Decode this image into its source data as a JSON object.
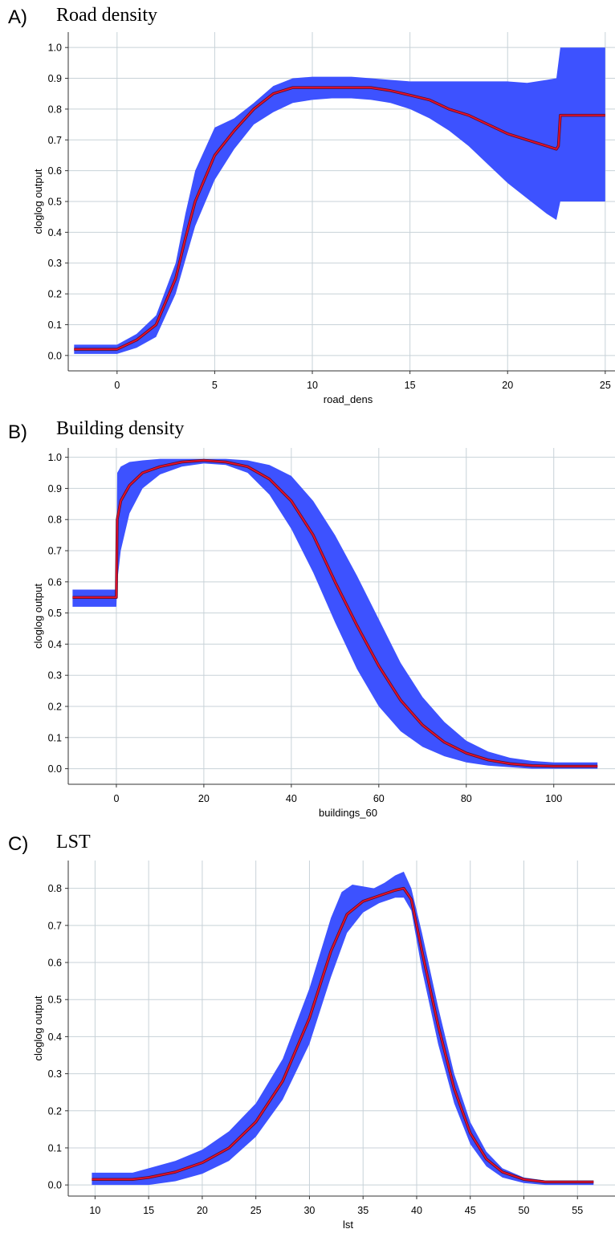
{
  "panels": [
    {
      "letter": "A)",
      "title": "Road density",
      "chart_data": {
        "type": "area",
        "xlabel": "road_dens",
        "ylabel": "cloglog output",
        "xlim": [
          -2.5,
          25.5
        ],
        "ylim": [
          -0.05,
          1.05
        ],
        "xticks": [
          0,
          5,
          10,
          15,
          20,
          25
        ],
        "yticks": [
          0.0,
          0.1,
          0.2,
          0.3,
          0.4,
          0.5,
          0.6,
          0.7,
          0.8,
          0.9,
          1.0
        ],
        "grid": true,
        "series": [
          {
            "role": "mean",
            "color": "#e8102a",
            "x": [
              -2.2,
              0,
              1,
              2,
              3,
              3.5,
              4,
              5,
              6,
              7,
              8,
              9,
              10,
              11,
              12,
              13,
              14,
              15,
              16,
              17,
              18,
              19,
              20,
              21,
              22,
              22.5,
              22.6,
              22.7,
              23,
              24,
              25
            ],
            "y": [
              0.02,
              0.02,
              0.05,
              0.1,
              0.25,
              0.38,
              0.5,
              0.65,
              0.73,
              0.8,
              0.85,
              0.87,
              0.87,
              0.87,
              0.87,
              0.87,
              0.86,
              0.845,
              0.83,
              0.8,
              0.78,
              0.75,
              0.72,
              0.7,
              0.68,
              0.67,
              0.68,
              0.78,
              0.78,
              0.78,
              0.78
            ]
          },
          {
            "role": "upper",
            "color": "#3d52ff",
            "x": [
              -2.2,
              0,
              1,
              2,
              3,
              3.5,
              4,
              5,
              6,
              7,
              8,
              9,
              10,
              11,
              12,
              13,
              14,
              15,
              16,
              17,
              18,
              19,
              20,
              21,
              22,
              22.5,
              22.7,
              25
            ],
            "y": [
              0.035,
              0.035,
              0.07,
              0.13,
              0.3,
              0.46,
              0.6,
              0.74,
              0.77,
              0.82,
              0.875,
              0.9,
              0.905,
              0.905,
              0.905,
              0.9,
              0.895,
              0.89,
              0.89,
              0.89,
              0.89,
              0.89,
              0.89,
              0.885,
              0.895,
              0.9,
              1.0,
              1.0
            ]
          },
          {
            "role": "lower",
            "color": "#3d52ff",
            "x": [
              -2.2,
              0,
              1,
              2,
              3,
              3.5,
              4,
              5,
              6,
              7,
              8,
              9,
              10,
              11,
              12,
              13,
              14,
              15,
              16,
              17,
              18,
              19,
              20,
              21,
              22,
              22.5,
              22.7,
              25
            ],
            "y": [
              0.005,
              0.005,
              0.025,
              0.06,
              0.2,
              0.31,
              0.42,
              0.57,
              0.67,
              0.75,
              0.79,
              0.82,
              0.83,
              0.835,
              0.835,
              0.83,
              0.82,
              0.8,
              0.77,
              0.73,
              0.68,
              0.62,
              0.56,
              0.51,
              0.46,
              0.44,
              0.5,
              0.5
            ]
          }
        ]
      }
    },
    {
      "letter": "B)",
      "title": "Building density",
      "chart_data": {
        "type": "area",
        "xlabel": "buildings_60",
        "ylabel": "cloglog output",
        "xlim": [
          -11,
          114
        ],
        "ylim": [
          -0.05,
          1.03
        ],
        "xticks": [
          0,
          20,
          40,
          60,
          80,
          100
        ],
        "yticks": [
          0.0,
          0.1,
          0.2,
          0.3,
          0.4,
          0.5,
          0.6,
          0.7,
          0.8,
          0.9,
          1.0
        ],
        "grid": true,
        "series": [
          {
            "role": "mean",
            "color": "#e8102a",
            "x": [
              -10,
              0,
              0.2,
              1,
              3,
              6,
              10,
              15,
              20,
              25,
              30,
              35,
              40,
              45,
              50,
              55,
              60,
              65,
              70,
              75,
              80,
              85,
              90,
              95,
              100,
              105,
              110
            ],
            "y": [
              0.55,
              0.55,
              0.8,
              0.86,
              0.91,
              0.95,
              0.97,
              0.985,
              0.99,
              0.985,
              0.97,
              0.93,
              0.86,
              0.75,
              0.6,
              0.46,
              0.33,
              0.22,
              0.14,
              0.085,
              0.05,
              0.028,
              0.016,
              0.01,
              0.008,
              0.008,
              0.008
            ]
          },
          {
            "role": "upper",
            "color": "#3d52ff",
            "x": [
              -10,
              0,
              0.2,
              1,
              3,
              6,
              10,
              15,
              20,
              25,
              30,
              35,
              40,
              45,
              50,
              55,
              60,
              65,
              70,
              75,
              80,
              85,
              90,
              95,
              100,
              105,
              110
            ],
            "y": [
              0.575,
              0.575,
              0.95,
              0.97,
              0.985,
              0.99,
              0.995,
              0.995,
              0.995,
              0.995,
              0.99,
              0.975,
              0.94,
              0.86,
              0.75,
              0.62,
              0.48,
              0.34,
              0.23,
              0.15,
              0.09,
              0.055,
              0.035,
              0.025,
              0.02,
              0.02,
              0.02
            ]
          },
          {
            "role": "lower",
            "color": "#3d52ff",
            "x": [
              -10,
              0,
              0.2,
              1,
              3,
              6,
              10,
              15,
              20,
              25,
              30,
              35,
              40,
              45,
              50,
              55,
              60,
              65,
              70,
              75,
              80,
              85,
              90,
              95,
              100,
              105,
              110
            ],
            "y": [
              0.52,
              0.52,
              0.6,
              0.7,
              0.82,
              0.9,
              0.945,
              0.97,
              0.98,
              0.975,
              0.95,
              0.88,
              0.77,
              0.63,
              0.47,
              0.32,
              0.2,
              0.12,
              0.07,
              0.04,
              0.02,
              0.01,
              0.005,
              0.0,
              0.0,
              0.0,
              0.0
            ]
          }
        ]
      }
    },
    {
      "letter": "C)",
      "title": "LST",
      "chart_data": {
        "type": "area",
        "xlabel": "lst",
        "ylabel": "cloglog output",
        "xlim": [
          7.5,
          58.5
        ],
        "ylim": [
          -0.03,
          0.875
        ],
        "xticks": [
          10,
          15,
          20,
          25,
          30,
          35,
          40,
          45,
          50,
          55
        ],
        "yticks": [
          0.0,
          0.1,
          0.2,
          0.3,
          0.4,
          0.5,
          0.6,
          0.7,
          0.8
        ],
        "grid": true,
        "series": [
          {
            "role": "mean",
            "color": "#e8102a",
            "x": [
              9.7,
              13.5,
              15,
              17.5,
              20,
              22.5,
              25,
              27.5,
              30,
              32,
              33.5,
              35,
              36.5,
              38,
              38.8,
              39.5,
              40.5,
              42,
              43.5,
              45,
              46.5,
              48,
              50,
              52,
              54,
              56.5
            ],
            "y": [
              0.015,
              0.015,
              0.02,
              0.035,
              0.06,
              0.1,
              0.17,
              0.28,
              0.45,
              0.63,
              0.73,
              0.765,
              0.78,
              0.795,
              0.8,
              0.77,
              0.63,
              0.43,
              0.26,
              0.14,
              0.07,
              0.035,
              0.015,
              0.008,
              0.008,
              0.008
            ]
          },
          {
            "role": "upper",
            "color": "#3d52ff",
            "x": [
              9.7,
              13.5,
              15,
              17.5,
              20,
              22.5,
              25,
              27.5,
              30,
              32,
              33,
              34,
              35,
              36,
              37,
              38,
              38.8,
              39.5,
              40.5,
              42,
              43.5,
              45,
              46.5,
              48,
              50,
              52,
              54,
              56.5
            ],
            "y": [
              0.033,
              0.033,
              0.045,
              0.065,
              0.095,
              0.145,
              0.22,
              0.34,
              0.53,
              0.72,
              0.79,
              0.81,
              0.805,
              0.8,
              0.815,
              0.835,
              0.845,
              0.8,
              0.68,
              0.48,
              0.3,
              0.17,
              0.09,
              0.045,
              0.02,
              0.012,
              0.012,
              0.012
            ]
          },
          {
            "role": "lower",
            "color": "#3d52ff",
            "x": [
              9.7,
              13.5,
              15,
              17.5,
              20,
              22.5,
              25,
              27.5,
              30,
              32,
              33.5,
              35,
              36.5,
              38,
              38.8,
              39.5,
              40.5,
              42,
              43.5,
              45,
              46.5,
              48,
              50,
              52,
              54,
              56.5
            ],
            "y": [
              0.0,
              0.0,
              0.0,
              0.01,
              0.03,
              0.065,
              0.13,
              0.23,
              0.38,
              0.56,
              0.68,
              0.735,
              0.76,
              0.775,
              0.775,
              0.74,
              0.58,
              0.38,
              0.22,
              0.11,
              0.05,
              0.02,
              0.005,
              0.0,
              0.0,
              0.0
            ]
          }
        ]
      }
    }
  ]
}
